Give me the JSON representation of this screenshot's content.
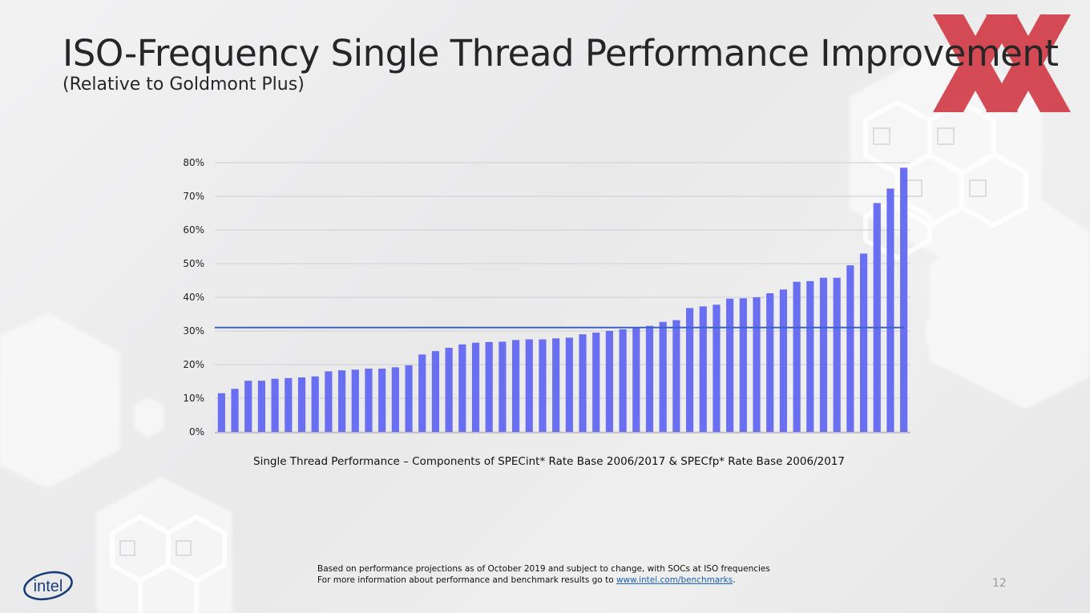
{
  "slide": {
    "title": "ISO-Frequency Single Thread Performance Improvement",
    "subtitle": "(Relative to Goldmont Plus)",
    "page_number": "12",
    "footnote_line1": "Based on performance projections as of October 2019 and subject to change, with SOCs at ISO frequencies",
    "footnote_line2_prefix": "For more information about performance and benchmark results go to ",
    "footnote_link": "www.intel.com/benchmarks",
    "footnote_suffix": ".",
    "brand_logo_text": "intel",
    "watermark_text": "XX"
  },
  "colors": {
    "bar": "#6a6ef0",
    "average_line": "#3c62c4",
    "grid": "#cfcfd4",
    "intel_logo": "#1a3e78",
    "watermark": "#d0343f"
  },
  "chart_data": {
    "type": "bar",
    "title": "",
    "xlabel": "Single Thread Performance – Components of SPECint* Rate Base 2006/2017 & SPECfp* Rate Base 2006/2017",
    "ylabel": "",
    "ylim": [
      0,
      80
    ],
    "yticks": [
      "0%",
      "10%",
      "20%",
      "30%",
      "40%",
      "50%",
      "60%",
      "70%",
      "80%"
    ],
    "grid": true,
    "legend": "none",
    "reference_line": 31,
    "values": [
      11.5,
      12.8,
      15.2,
      15.2,
      15.8,
      16.0,
      16.2,
      16.5,
      18.0,
      18.3,
      18.5,
      18.8,
      18.8,
      19.2,
      19.8,
      23.0,
      24.0,
      25.0,
      26.0,
      26.5,
      26.7,
      26.8,
      27.3,
      27.5,
      27.5,
      27.8,
      28.0,
      29.0,
      29.5,
      30.0,
      30.5,
      31.0,
      31.5,
      32.7,
      33.2,
      36.8,
      37.3,
      37.8,
      39.6,
      39.7,
      40.0,
      41.2,
      42.3,
      44.6,
      44.8,
      45.8,
      45.8,
      49.5,
      53.0,
      68.0,
      72.3,
      78.5
    ]
  }
}
